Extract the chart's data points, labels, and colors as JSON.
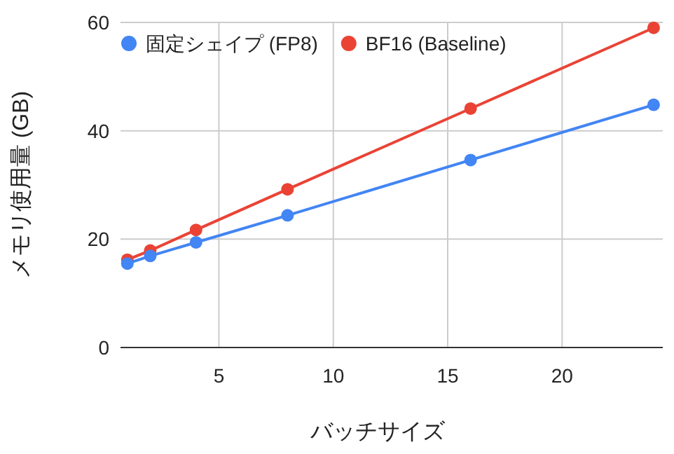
{
  "chart_data": {
    "type": "line",
    "xlabel": "バッチサイズ",
    "ylabel": "メモリ使用量 (GB)",
    "x": [
      1,
      2,
      4,
      8,
      16,
      24
    ],
    "series": [
      {
        "name": "固定シェイプ (FP8)",
        "color": "#4285f4",
        "values": [
          15.5,
          16.9,
          19.4,
          24.4,
          34.6,
          44.8
        ]
      },
      {
        "name": "BF16 (Baseline)",
        "color": "#ea4335",
        "values": [
          16.2,
          17.9,
          21.7,
          29.2,
          44.1,
          59.0
        ]
      }
    ],
    "xlim": [
      0.7,
      24.4
    ],
    "xticks": [
      5,
      10,
      15,
      20
    ],
    "ylim": [
      0,
      60
    ],
    "yticks": [
      0,
      20,
      40,
      60
    ],
    "grid": true,
    "legend": "top left",
    "marker": "circle",
    "line_style": "solid"
  }
}
